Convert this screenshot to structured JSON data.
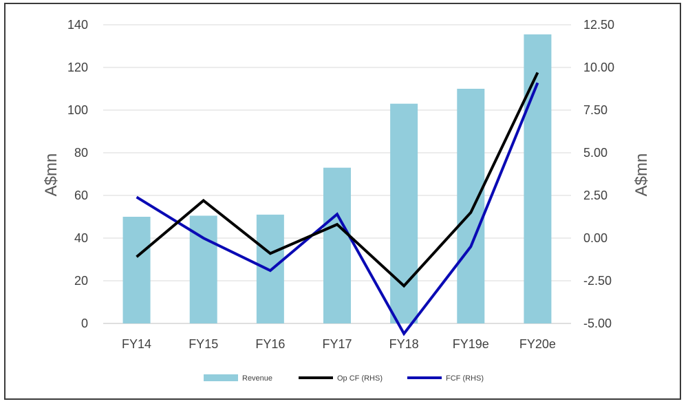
{
  "chart_data": {
    "type": "bar",
    "categories": [
      "FY14",
      "FY15",
      "FY16",
      "FY17",
      "FY18",
      "FY19e",
      "FY20e"
    ],
    "ylabel": "A$mn",
    "y2label": "A$mn",
    "ylim": [
      0,
      140
    ],
    "y2lim": [
      -5.0,
      12.5
    ],
    "y_ticks": [
      "0",
      "20",
      "40",
      "60",
      "80",
      "100",
      "120",
      "140"
    ],
    "y2_ticks": [
      "-5.00",
      "-2.50",
      "0.00",
      "2.50",
      "5.00",
      "7.50",
      "10.00",
      "12.50"
    ],
    "grid": true,
    "legend_position": "bottom",
    "series": [
      {
        "name": "Revenue",
        "type": "bar",
        "axis": "left",
        "color": "#92cddc",
        "values": [
          50,
          50.5,
          51,
          73,
          103,
          110,
          135.5
        ]
      },
      {
        "name": "Op CF (RHS)",
        "type": "line",
        "axis": "right",
        "color": "#000000",
        "values": [
          -1.1,
          2.2,
          -0.9,
          0.8,
          -2.8,
          1.5,
          9.7
        ]
      },
      {
        "name": "FCF (RHS)",
        "type": "line",
        "axis": "right",
        "color": "#0a0ab4",
        "values": [
          2.4,
          0.0,
          -1.9,
          1.4,
          -5.6,
          -0.5,
          9.1
        ]
      }
    ]
  }
}
